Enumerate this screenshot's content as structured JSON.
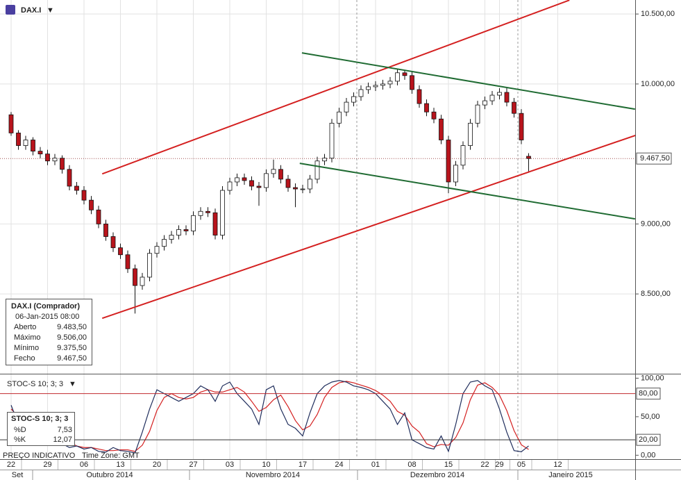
{
  "chart_data": [
    {
      "type": "candlestick",
      "title": "DAX.I",
      "categories": [
        "22",
        null,
        null,
        null,
        null,
        "29",
        null,
        null,
        null,
        null,
        "06",
        null,
        null,
        null,
        null,
        "13",
        null,
        null,
        null,
        null,
        "20",
        null,
        null,
        null,
        null,
        "27",
        null,
        null,
        null,
        null,
        "03",
        null,
        null,
        null,
        null,
        "10",
        null,
        null,
        null,
        null,
        "17",
        null,
        null,
        null,
        null,
        "24",
        null,
        null,
        null,
        null,
        "01",
        null,
        null,
        null,
        null,
        "08",
        null,
        null,
        null,
        null,
        "15",
        null,
        null,
        null,
        null,
        "22",
        null,
        "29",
        null,
        null,
        "05",
        null,
        null,
        null,
        null,
        "12"
      ],
      "months": [
        "Set",
        "Outubro 2014",
        "Novembro 2014",
        "Dezembro 2014",
        "Janeiro 2015"
      ],
      "ohlc": [
        [
          9780,
          9800,
          9630,
          9650
        ],
        [
          9650,
          9670,
          9530,
          9560
        ],
        [
          9560,
          9630,
          9530,
          9600
        ],
        [
          9600,
          9620,
          9490,
          9520
        ],
        [
          9520,
          9550,
          9470,
          9500
        ],
        [
          9500,
          9530,
          9420,
          9450
        ],
        [
          9450,
          9500,
          9420,
          9470
        ],
        [
          9470,
          9490,
          9360,
          9390
        ],
        [
          9390,
          9420,
          9240,
          9270
        ],
        [
          9270,
          9300,
          9210,
          9240
        ],
        [
          9240,
          9270,
          9140,
          9170
        ],
        [
          9170,
          9200,
          9070,
          9100
        ],
        [
          9100,
          9130,
          8970,
          9000
        ],
        [
          9000,
          9030,
          8880,
          8910
        ],
        [
          8910,
          8940,
          8800,
          8830
        ],
        [
          8830,
          8860,
          8750,
          8780
        ],
        [
          8780,
          8810,
          8650,
          8680
        ],
        [
          8680,
          8710,
          8360,
          8560
        ],
        [
          8560,
          8650,
          8530,
          8620
        ],
        [
          8620,
          8820,
          8590,
          8790
        ],
        [
          8790,
          8870,
          8760,
          8840
        ],
        [
          8840,
          8920,
          8810,
          8890
        ],
        [
          8890,
          8950,
          8860,
          8920
        ],
        [
          8920,
          8990,
          8890,
          8960
        ],
        [
          8960,
          8990,
          8920,
          8950
        ],
        [
          8950,
          9090,
          8920,
          9060
        ],
        [
          9060,
          9120,
          9030,
          9090
        ],
        [
          9090,
          9120,
          9050,
          9080
        ],
        [
          9080,
          9110,
          8890,
          8920
        ],
        [
          8920,
          9270,
          8890,
          9240
        ],
        [
          9240,
          9330,
          9210,
          9300
        ],
        [
          9300,
          9360,
          9270,
          9330
        ],
        [
          9330,
          9360,
          9280,
          9310
        ],
        [
          9310,
          9340,
          9240,
          9270
        ],
        [
          9270,
          9300,
          9130,
          9260
        ],
        [
          9260,
          9390,
          9230,
          9360
        ],
        [
          9360,
          9460,
          9330,
          9390
        ],
        [
          9390,
          9420,
          9290,
          9320
        ],
        [
          9320,
          9350,
          9230,
          9260
        ],
        [
          9260,
          9290,
          9120,
          9250
        ],
        [
          9250,
          9280,
          9220,
          9250
        ],
        [
          9250,
          9350,
          9220,
          9320
        ],
        [
          9320,
          9480,
          9290,
          9450
        ],
        [
          9450,
          9500,
          9420,
          9470
        ],
        [
          9470,
          9750,
          9440,
          9720
        ],
        [
          9720,
          9830,
          9690,
          9800
        ],
        [
          9800,
          9900,
          9770,
          9870
        ],
        [
          9870,
          9940,
          9840,
          9910
        ],
        [
          9910,
          9990,
          9880,
          9960
        ],
        [
          9960,
          10010,
          9930,
          9980
        ],
        [
          9980,
          10020,
          9950,
          9990
        ],
        [
          9990,
          10030,
          9960,
          10000
        ],
        [
          10000,
          10050,
          9970,
          10020
        ],
        [
          10020,
          10110,
          9990,
          10080
        ],
        [
          10080,
          10100,
          10030,
          10060
        ],
        [
          10060,
          10090,
          9930,
          9960
        ],
        [
          9960,
          9990,
          9830,
          9860
        ],
        [
          9860,
          9890,
          9770,
          9800
        ],
        [
          9800,
          9830,
          9720,
          9750
        ],
        [
          9750,
          9780,
          9570,
          9600
        ],
        [
          9600,
          9630,
          9220,
          9300
        ],
        [
          9300,
          9450,
          9270,
          9420
        ],
        [
          9420,
          9590,
          9390,
          9560
        ],
        [
          9560,
          9750,
          9530,
          9720
        ],
        [
          9720,
          9880,
          9690,
          9850
        ],
        [
          9850,
          9910,
          9820,
          9880
        ],
        [
          9880,
          9950,
          9850,
          9920
        ],
        [
          9920,
          9970,
          9890,
          9940
        ],
        [
          9940,
          9970,
          9840,
          9870
        ],
        [
          9870,
          9900,
          9760,
          9790
        ],
        [
          9790,
          9820,
          9570,
          9600
        ],
        [
          9483.5,
          9506,
          9375.5,
          9467.5
        ],
        null,
        null,
        null,
        null
      ],
      "up_color": "#ffffff",
      "down_color": "#b8141c",
      "ylim": [
        7935,
        10600
      ],
      "yticks": [
        {
          "value": 8500,
          "label": "8.500,00"
        },
        {
          "value": 9000,
          "label": "9.000,00"
        },
        {
          "value": 10000,
          "label": "10.000,00"
        },
        {
          "value": 10500,
          "label": "10.500,00"
        }
      ],
      "last_price": {
        "value": 9467.5,
        "label": "9.467,50"
      },
      "grid": true,
      "lines": [
        {
          "color": "#d42020",
          "x": [
            12.5,
            76.6
          ],
          "y": [
            9358,
            10599
          ]
        },
        {
          "color": "#d42020",
          "x": [
            12.5,
            92
          ],
          "y": [
            8326,
            9746
          ]
        },
        {
          "color": "#1f6b32",
          "x": [
            39.9,
            85.6
          ],
          "y": [
            10222,
            9820
          ]
        },
        {
          "color": "#1f6b32",
          "x": [
            39.6,
            85.6
          ],
          "y": [
            9433,
            9036
          ]
        }
      ],
      "info_box": {
        "title": "DAX.I (Comprador)",
        "datetime": "06-Jan-2015 08:00",
        "rows": [
          [
            "Aberto",
            "9.483,50"
          ],
          [
            "Máximo",
            "9.506,00"
          ],
          [
            "Mínimo",
            "9.375,50"
          ],
          [
            "Fecho",
            "9.467,50"
          ]
        ]
      }
    },
    {
      "type": "line",
      "title": "STOC-S 10; 3; 3",
      "series": [
        {
          "name": "%D",
          "color": "#d42020",
          "legend_value": "7,53",
          "values": [
            60,
            50,
            40,
            32,
            25,
            25,
            25,
            23,
            17,
            12,
            10,
            10,
            8,
            6,
            6,
            7,
            7,
            5,
            13,
            31,
            58,
            75,
            80,
            75,
            73,
            75,
            82,
            85,
            82,
            82,
            85,
            88,
            82,
            70,
            57,
            62,
            72,
            78,
            63,
            45,
            33,
            38,
            53,
            75,
            88,
            94,
            96,
            94,
            91,
            88,
            84,
            78,
            70,
            57,
            52,
            38,
            30,
            15,
            11,
            14,
            13,
            23,
            42,
            72,
            91,
            94,
            88,
            78,
            58,
            32,
            13.5,
            7.53,
            null,
            null,
            null,
            null
          ]
        },
        {
          "name": "%K",
          "color": "#1f2d5c",
          "legend_value": "12,07",
          "values": [
            65,
            40,
            30,
            25,
            20,
            30,
            25,
            15,
            10,
            12,
            8,
            10,
            5,
            4,
            10,
            6,
            5,
            3,
            30,
            60,
            85,
            80,
            75,
            70,
            75,
            80,
            90,
            85,
            70,
            90,
            95,
            80,
            70,
            60,
            40,
            85,
            90,
            60,
            40,
            35,
            25,
            55,
            80,
            90,
            95,
            97,
            95,
            90,
            88,
            85,
            80,
            70,
            60,
            40,
            55,
            20,
            15,
            10,
            8,
            25,
            5,
            40,
            80,
            95,
            97,
            90,
            85,
            60,
            30,
            6,
            4.5,
            12.07,
            null,
            null,
            null,
            null
          ]
        }
      ],
      "ylim": [
        -6,
        104
      ],
      "yticks": [
        {
          "value": 0,
          "label": "0,00"
        },
        {
          "value": 50,
          "label": "50,00"
        },
        {
          "value": 100,
          "label": "100,00"
        }
      ],
      "levels": [
        {
          "value": 80,
          "label": "80,00",
          "color": "#c0282d"
        },
        {
          "value": 20,
          "label": "20,00",
          "color": "#333333"
        }
      ]
    }
  ],
  "notes": [
    "PREÇO INDICATIVO",
    "Time Zone: GMT"
  ]
}
